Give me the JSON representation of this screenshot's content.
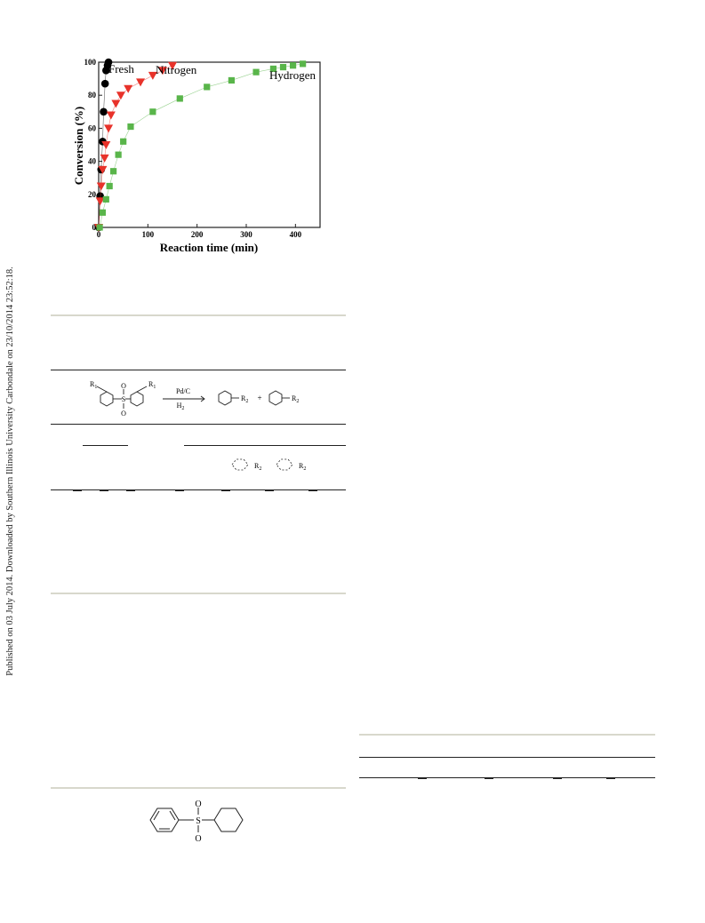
{
  "sidebar_text": "Published on 03 July 2014. Downloaded by Southern Illinois University Carbondale on 23/10/2014 23:52:18.",
  "chart_data": {
    "type": "scatter",
    "xlabel": "Reaction time (min)",
    "ylabel": "Conversion (%)",
    "xlim": [
      0,
      450
    ],
    "ylim": [
      0,
      100
    ],
    "xticks": [
      0,
      100,
      200,
      300,
      400
    ],
    "yticks": [
      0,
      20,
      40,
      60,
      80,
      100
    ],
    "legend_placement": "inline-top",
    "series": [
      {
        "name": "Fresh",
        "marker": "circle",
        "color": "#000000",
        "x": [
          0,
          3,
          5,
          8,
          10,
          13,
          15,
          18,
          20
        ],
        "y": [
          0,
          19,
          35,
          52,
          70,
          87,
          95,
          98,
          100
        ]
      },
      {
        "name": "Nitrogen",
        "marker": "triangle-down",
        "color": "#e8322a",
        "x": [
          0,
          3,
          5,
          8,
          12,
          15,
          20,
          25,
          35,
          45,
          60,
          85,
          110,
          130,
          150
        ],
        "y": [
          0,
          16,
          25,
          35,
          42,
          50,
          60,
          68,
          75,
          80,
          84,
          88,
          92,
          95,
          98
        ]
      },
      {
        "name": "Hydrogen",
        "marker": "square",
        "color": "#59b54a",
        "x": [
          2,
          8,
          15,
          22,
          30,
          40,
          50,
          65,
          110,
          165,
          220,
          270,
          320,
          355,
          375,
          395,
          415
        ],
        "y": [
          0,
          9,
          17,
          25,
          34,
          44,
          52,
          61,
          70,
          78,
          85,
          89,
          94,
          96,
          97,
          98,
          99
        ]
      }
    ]
  },
  "scheme": {
    "reactant_sub": "R",
    "reactant_sub_index": "1",
    "sulfur": "S",
    "oxygen": "O",
    "catalyst": "Pd/C",
    "reagent": "H",
    "reagent_index": "2",
    "product_sub": "R",
    "product_sub_index": "2",
    "plus": "+"
  },
  "table_header": {
    "product_sub": "R",
    "product_sub_index": "2"
  },
  "bottom_structure": {
    "sulfur": "S",
    "oxygen": "O"
  }
}
